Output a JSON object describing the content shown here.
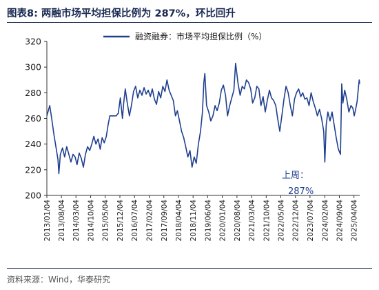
{
  "header": {
    "title": "图表8:  两融市场平均担保比例为 287%，环比回升"
  },
  "source": {
    "text": "资料来源：Wind，华泰研究"
  },
  "colors": {
    "line": "#1f3f8f",
    "axis": "#333333",
    "title": "#1a2a52"
  },
  "chart_data": {
    "type": "line",
    "title": "",
    "xlabel": "",
    "ylabel": "",
    "ylim": [
      200,
      320
    ],
    "yticks": [
      200,
      220,
      240,
      260,
      280,
      300,
      320
    ],
    "grid": false,
    "legend": {
      "position": "top-center",
      "entries": [
        "融资融券：市场平均担保比例（%）"
      ]
    },
    "x_tick_labels": [
      "2013/01/04",
      "2013/08/04",
      "2014/03/04",
      "2014/10/04",
      "2015/05/04",
      "2015/12/04",
      "2016/07/04",
      "2017/02/04",
      "2017/09/04",
      "2018/04/04",
      "2018/11/04",
      "2019/06/04",
      "2020/01/04",
      "2020/08/04",
      "2021/03/04",
      "2021/10/04",
      "2022/05/04",
      "2022/12/04",
      "2023/07/04",
      "2024/02/04",
      "2024/09/04",
      "2025/04/04"
    ],
    "annotation": {
      "line1": "上周：",
      "line2": "287%",
      "x": "2025/06/27",
      "y": 287
    },
    "series": [
      {
        "name": "融资融券：市场平均担保比例（%）",
        "points": [
          [
            "2013/01/04",
            262
          ],
          [
            "2013/02/15",
            270
          ],
          [
            "2013/03/15",
            260
          ],
          [
            "2013/04/15",
            248
          ],
          [
            "2013/05/15",
            238
          ],
          [
            "2013/06/15",
            228
          ],
          [
            "2013/06/28",
            217
          ],
          [
            "2013/07/20",
            232
          ],
          [
            "2013/08/20",
            237
          ],
          [
            "2013/09/20",
            230
          ],
          [
            "2013/10/20",
            238
          ],
          [
            "2013/11/20",
            232
          ],
          [
            "2013/12/20",
            226
          ],
          [
            "2014/01/20",
            232
          ],
          [
            "2014/02/20",
            230
          ],
          [
            "2014/03/20",
            224
          ],
          [
            "2014/04/20",
            233
          ],
          [
            "2014/05/20",
            229
          ],
          [
            "2014/06/20",
            222
          ],
          [
            "2014/07/20",
            232
          ],
          [
            "2014/08/20",
            238
          ],
          [
            "2014/09/20",
            235
          ],
          [
            "2014/10/20",
            240
          ],
          [
            "2014/11/20",
            246
          ],
          [
            "2014/12/20",
            240
          ],
          [
            "2015/01/20",
            244
          ],
          [
            "2015/02/20",
            236
          ],
          [
            "2015/03/20",
            245
          ],
          [
            "2015/04/20",
            241
          ],
          [
            "2015/05/20",
            246
          ],
          [
            "2015/06/15",
            255
          ],
          [
            "2015/07/10",
            262
          ],
          [
            "2015/08/10",
            262
          ],
          [
            "2015/09/10",
            262
          ],
          [
            "2015/10/10",
            262
          ],
          [
            "2015/11/10",
            264
          ],
          [
            "2015/12/10",
            276
          ],
          [
            "2016/01/10",
            260
          ],
          [
            "2016/01/28",
            272
          ],
          [
            "2016/02/20",
            283
          ],
          [
            "2016/03/20",
            272
          ],
          [
            "2016/04/20",
            262
          ],
          [
            "2016/05/20",
            270
          ],
          [
            "2016/06/20",
            281
          ],
          [
            "2016/07/20",
            285
          ],
          [
            "2016/08/20",
            276
          ],
          [
            "2016/09/20",
            282
          ],
          [
            "2016/10/20",
            278
          ],
          [
            "2016/11/20",
            284
          ],
          [
            "2016/12/20",
            279
          ],
          [
            "2017/01/20",
            282
          ],
          [
            "2017/02/20",
            277
          ],
          [
            "2017/03/20",
            283
          ],
          [
            "2017/04/20",
            275
          ],
          [
            "2017/05/20",
            271
          ],
          [
            "2017/06/20",
            281
          ],
          [
            "2017/07/20",
            276
          ],
          [
            "2017/08/20",
            285
          ],
          [
            "2017/09/20",
            281
          ],
          [
            "2017/10/20",
            290
          ],
          [
            "2017/11/20",
            282
          ],
          [
            "2017/12/20",
            278
          ],
          [
            "2018/01/20",
            274
          ],
          [
            "2018/02/20",
            262
          ],
          [
            "2018/03/20",
            266
          ],
          [
            "2018/04/20",
            258
          ],
          [
            "2018/05/20",
            250
          ],
          [
            "2018/06/20",
            245
          ],
          [
            "2018/07/20",
            238
          ],
          [
            "2018/08/20",
            230
          ],
          [
            "2018/09/20",
            235
          ],
          [
            "2018/10/20",
            222
          ],
          [
            "2018/11/20",
            230
          ],
          [
            "2018/12/20",
            225
          ],
          [
            "2019/01/20",
            240
          ],
          [
            "2019/02/20",
            250
          ],
          [
            "2019/03/20",
            265
          ],
          [
            "2019/04/10",
            288
          ],
          [
            "2019/04/25",
            295
          ],
          [
            "2019/05/20",
            270
          ],
          [
            "2019/06/20",
            265
          ],
          [
            "2019/07/20",
            258
          ],
          [
            "2019/08/20",
            262
          ],
          [
            "2019/09/20",
            270
          ],
          [
            "2019/10/20",
            266
          ],
          [
            "2019/11/20",
            272
          ],
          [
            "2019/12/20",
            282
          ],
          [
            "2020/01/20",
            286
          ],
          [
            "2020/02/20",
            278
          ],
          [
            "2020/03/20",
            262
          ],
          [
            "2020/04/20",
            270
          ],
          [
            "2020/05/20",
            276
          ],
          [
            "2020/06/20",
            282
          ],
          [
            "2020/07/15",
            303
          ],
          [
            "2020/08/20",
            287
          ],
          [
            "2020/09/20",
            278
          ],
          [
            "2020/10/20",
            285
          ],
          [
            "2020/11/20",
            283
          ],
          [
            "2020/12/20",
            290
          ],
          [
            "2021/01/20",
            288
          ],
          [
            "2021/02/20",
            283
          ],
          [
            "2021/03/20",
            272
          ],
          [
            "2021/04/20",
            276
          ],
          [
            "2021/05/20",
            285
          ],
          [
            "2021/06/20",
            283
          ],
          [
            "2021/07/20",
            270
          ],
          [
            "2021/08/20",
            277
          ],
          [
            "2021/09/20",
            265
          ],
          [
            "2021/10/20",
            274
          ],
          [
            "2021/11/20",
            282
          ],
          [
            "2021/12/20",
            276
          ],
          [
            "2022/01/20",
            274
          ],
          [
            "2022/02/20",
            270
          ],
          [
            "2022/03/20",
            260
          ],
          [
            "2022/04/20",
            250
          ],
          [
            "2022/05/20",
            262
          ],
          [
            "2022/06/20",
            275
          ],
          [
            "2022/07/20",
            285
          ],
          [
            "2022/08/20",
            280
          ],
          [
            "2022/09/20",
            270
          ],
          [
            "2022/10/20",
            262
          ],
          [
            "2022/11/20",
            275
          ],
          [
            "2022/12/20",
            280
          ],
          [
            "2023/01/20",
            283
          ],
          [
            "2023/02/20",
            277
          ],
          [
            "2023/03/20",
            280
          ],
          [
            "2023/04/20",
            275
          ],
          [
            "2023/05/20",
            276
          ],
          [
            "2023/06/20",
            270
          ],
          [
            "2023/07/20",
            280
          ],
          [
            "2023/08/20",
            273
          ],
          [
            "2023/09/20",
            268
          ],
          [
            "2023/10/20",
            262
          ],
          [
            "2023/11/20",
            267
          ],
          [
            "2023/12/20",
            260
          ],
          [
            "2024/01/20",
            250
          ],
          [
            "2024/02/05",
            226
          ],
          [
            "2024/02/25",
            255
          ],
          [
            "2024/03/20",
            265
          ],
          [
            "2024/04/20",
            258
          ],
          [
            "2024/05/20",
            265
          ],
          [
            "2024/06/20",
            255
          ],
          [
            "2024/07/20",
            245
          ],
          [
            "2024/08/20",
            236
          ],
          [
            "2024/09/20",
            232
          ],
          [
            "2024/10/08",
            287
          ],
          [
            "2024/10/25",
            272
          ],
          [
            "2024/11/20",
            282
          ],
          [
            "2024/12/20",
            275
          ],
          [
            "2025/01/20",
            265
          ],
          [
            "2025/02/20",
            270
          ],
          [
            "2025/03/20",
            268
          ],
          [
            "2025/04/08",
            262
          ],
          [
            "2025/04/25",
            266
          ],
          [
            "2025/05/20",
            273
          ],
          [
            "2025/06/10",
            285
          ],
          [
            "2025/06/20",
            290
          ],
          [
            "2025/06/27",
            287
          ]
        ]
      }
    ]
  }
}
